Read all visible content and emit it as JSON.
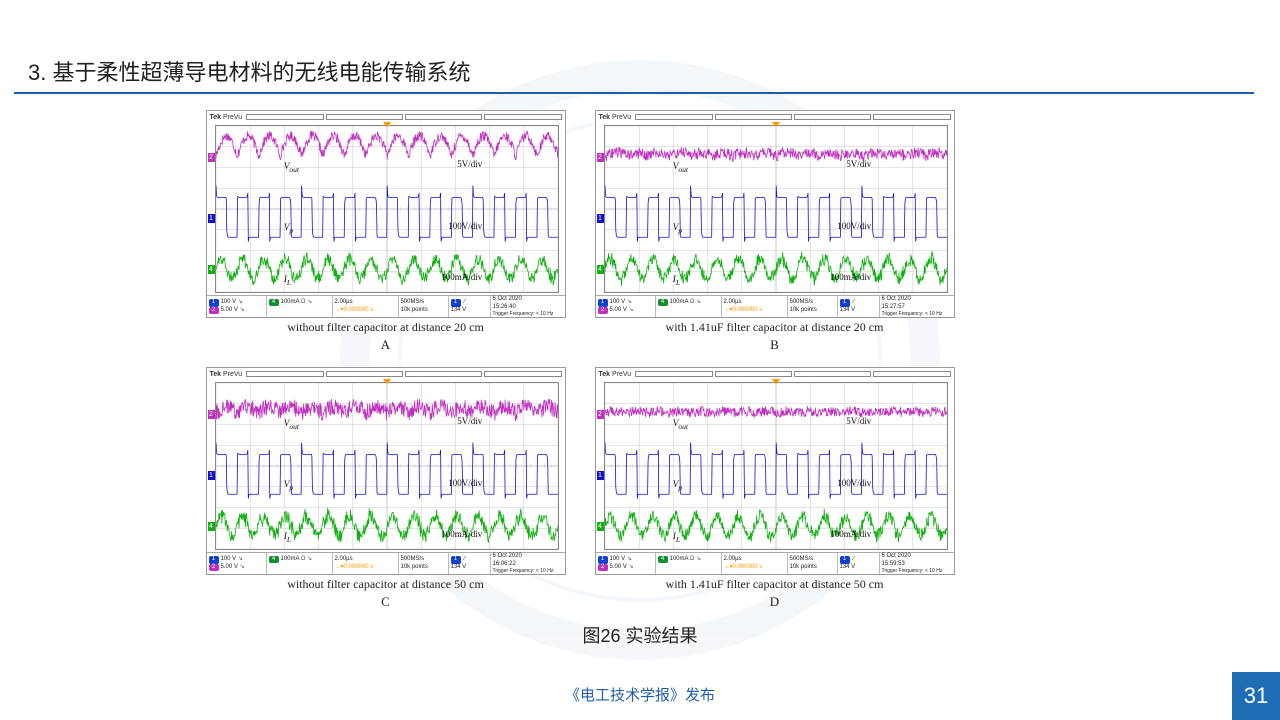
{
  "heading": "3. 基于柔性超薄导电材料的无线电能传输系统",
  "figure_caption": "图26 实验结果",
  "footer_pub": "《电工技术学报》发布",
  "page_number": "31",
  "colors": {
    "accent": "#1f5fa8",
    "page_box": "#1f6db5",
    "watermark": "#e8eef5",
    "grid": "#c8c8c8",
    "ch_vout": "#c030c0",
    "ch_vp": "#1010d0",
    "ch_il": "#10b010",
    "ch4": "#10b010",
    "badge1": "#1040d0",
    "badge2": "#c030c0",
    "badge4": "#109030",
    "orange": "#ff9900"
  },
  "scope_brand": "Tek",
  "scope_mode": "PreVu",
  "channels": [
    {
      "name": "Vout",
      "label": "V",
      "sub": "out",
      "div": "5V/div",
      "color_key": "ch_vout",
      "baseline": 0.18
    },
    {
      "name": "Vp",
      "label": "V",
      "sub": "p",
      "div": "100V/div",
      "color_key": "ch_vp",
      "baseline": 0.55
    },
    {
      "name": "IL",
      "label": "I",
      "sub": "L",
      "div": "100mA/div",
      "color_key": "ch_il",
      "baseline": 0.86
    }
  ],
  "footer_cells": {
    "c1": [
      {
        "badge_color": "#1040d0",
        "badge": "1",
        "text": "100 V",
        "icon": "↘"
      },
      {
        "badge_color": "#c030c0",
        "badge": "2",
        "text": "5.00 V",
        "icon": "↘"
      }
    ],
    "c2": [
      {
        "badge_color": "#109030",
        "badge": "4",
        "text": "100mA",
        "icon": "Ω ↘"
      }
    ],
    "c3": [
      "2.00µs",
      "→▾0.000000 s"
    ],
    "c4": [
      "500MS/s",
      "10k points"
    ],
    "c5_badge": {
      "color": "#1040d0",
      "text": "1"
    },
    "c5_line2": "134 V",
    "c6_line2": "Trigger Frequency: < 10 Hz"
  },
  "panels": [
    {
      "id": "A",
      "caption": "without filter capacitor at distance 20 cm",
      "timestamp": [
        "6 Oct 2020",
        "15:26:40"
      ],
      "wave_profile": {
        "vout_amp": 0.12,
        "vout_noise": 0.03,
        "vp_amp": 0.12,
        "il_amp": 0.06,
        "il_noise": 0.035,
        "cycles": 16
      }
    },
    {
      "id": "B",
      "caption": "with 1.41uF filter capacitor at distance 20 cm",
      "timestamp": [
        "6 Oct 2020",
        "15:27:57"
      ],
      "wave_profile": {
        "vout_amp": 0.018,
        "vout_noise": 0.035,
        "vp_amp": 0.12,
        "il_amp": 0.06,
        "il_noise": 0.035,
        "cycles": 16
      }
    },
    {
      "id": "C",
      "caption": "without filter capacitor at distance 50 cm",
      "timestamp": [
        "6 Oct 2020",
        "16:06:22"
      ],
      "wave_profile": {
        "vout_amp": 0.035,
        "vout_noise": 0.05,
        "vp_amp": 0.12,
        "il_amp": 0.06,
        "il_noise": 0.04,
        "cycles": 16
      }
    },
    {
      "id": "D",
      "caption": "with 1.41uF filter capacitor at distance 50 cm",
      "timestamp": [
        "6 Oct 2020",
        "15:59:53"
      ],
      "wave_profile": {
        "vout_amp": 0.01,
        "vout_noise": 0.03,
        "vp_amp": 0.12,
        "il_amp": 0.06,
        "il_noise": 0.035,
        "cycles": 16
      }
    }
  ]
}
